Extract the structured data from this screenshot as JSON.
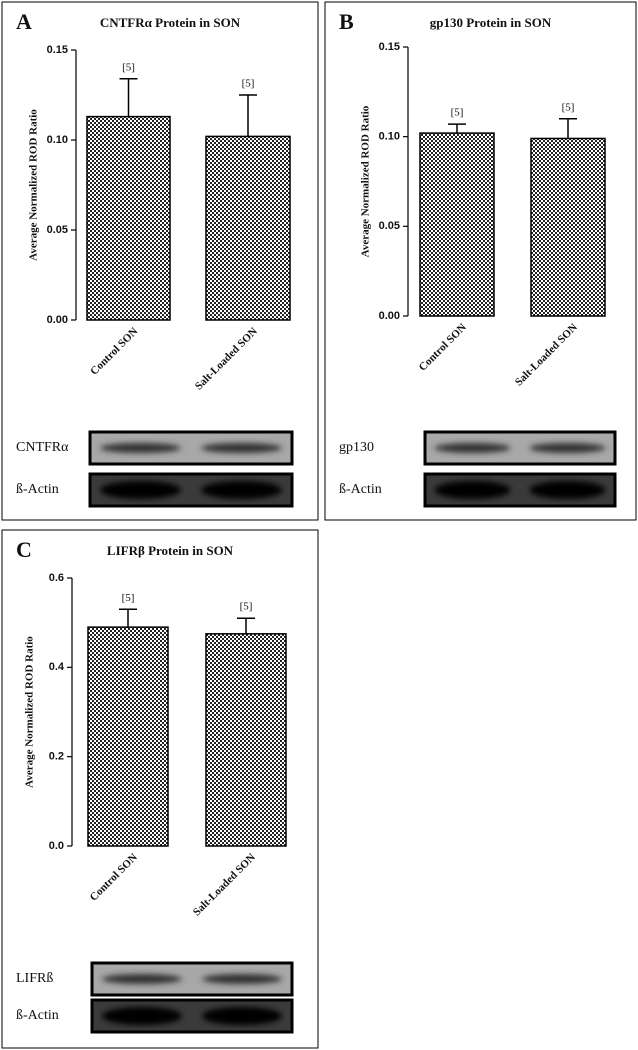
{
  "chart_data": [
    {
      "type": "bar",
      "panel": "A",
      "title": "CNTFRα Protein in SON",
      "y_label": "Average Normalized ROD Ratio",
      "categories": [
        "Control SON",
        "Salt-Loaded SON"
      ],
      "values": [
        0.113,
        0.102
      ],
      "errors": [
        0.021,
        0.023
      ],
      "n_labels": [
        "[5]",
        "[5]"
      ],
      "ylim": [
        0,
        0.15
      ],
      "yticks": [
        {
          "value": 0,
          "label": "0.00"
        },
        {
          "value": 0.05,
          "label": "0.05"
        },
        {
          "value": 0.1,
          "label": "0.10"
        },
        {
          "value": 0.15,
          "label": "0.15"
        }
      ],
      "blot_labels": [
        "CNTFRα",
        "ß-Actin"
      ]
    },
    {
      "type": "bar",
      "panel": "B",
      "title": "gp130 Protein in SON",
      "y_label": "Average Normalized ROD Ratio",
      "categories": [
        "Control SON",
        "Salt-Loaded SON"
      ],
      "values": [
        0.102,
        0.099
      ],
      "errors": [
        0.005,
        0.011
      ],
      "n_labels": [
        "[5]",
        "[5]"
      ],
      "ylim": [
        0,
        0.15
      ],
      "yticks": [
        {
          "value": 0,
          "label": "0.00"
        },
        {
          "value": 0.05,
          "label": "0.05"
        },
        {
          "value": 0.1,
          "label": "0.10"
        },
        {
          "value": 0.15,
          "label": "0.15"
        }
      ],
      "blot_labels": [
        "gp130",
        "ß-Actin"
      ]
    },
    {
      "type": "bar",
      "panel": "C",
      "title": "LIFRβ Protein in SON",
      "y_label": "Average Normalized ROD Ratio",
      "categories": [
        "Control SON",
        "Salt-Loaded SON"
      ],
      "values": [
        0.49,
        0.475
      ],
      "errors": [
        0.04,
        0.035
      ],
      "n_labels": [
        "[5]",
        "[5]"
      ],
      "ylim": [
        0,
        0.6
      ],
      "yticks": [
        {
          "value": 0,
          "label": "0.0"
        },
        {
          "value": 0.2,
          "label": "0.2"
        },
        {
          "value": 0.4,
          "label": "0.4"
        },
        {
          "value": 0.6,
          "label": "0.6"
        }
      ],
      "blot_labels": [
        "LIFRß",
        "ß-Actin"
      ]
    }
  ]
}
